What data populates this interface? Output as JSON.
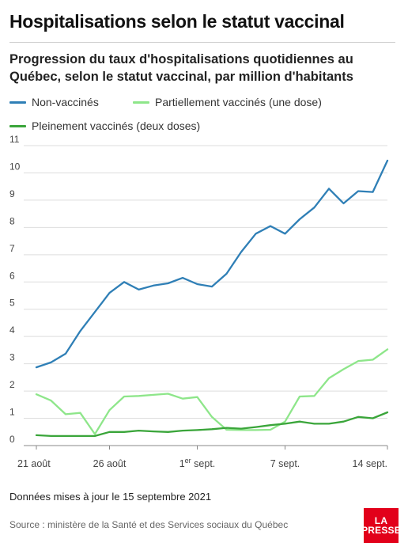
{
  "header": {
    "title": "Hospitalisations selon le statut vaccinal",
    "subtitle": "Progression du taux d'hospitalisations quotidiennes au Québec, selon le statut vaccinal, par million d'habitants"
  },
  "legend": [
    {
      "label": "Non-vaccinés",
      "color": "#2f7fb6"
    },
    {
      "label": "Partiellement vaccinés (une dose)",
      "color": "#8ee68a"
    },
    {
      "label": "Pleinement vaccinés (deux doses)",
      "color": "#3aa53a"
    }
  ],
  "chart_data": {
    "type": "line",
    "x": [
      "21 août",
      "22 août",
      "23 août",
      "24 août",
      "25 août",
      "26 août",
      "27 août",
      "28 août",
      "29 août",
      "30 août",
      "31 août",
      "1er sept.",
      "2 sept.",
      "3 sept.",
      "4 sept.",
      "5 sept.",
      "6 sept.",
      "7 sept.",
      "8 sept.",
      "9 sept.",
      "10 sept.",
      "11 sept.",
      "12 sept.",
      "13 sept.",
      "14 sept."
    ],
    "x_ticks": [
      {
        "index": 0,
        "label": "21 août"
      },
      {
        "index": 5,
        "label": "26 août"
      },
      {
        "index": 11,
        "label": "1",
        "sup": "er",
        "label_rest": " sept."
      },
      {
        "index": 17,
        "label": "7 sept."
      },
      {
        "index": 24,
        "label": "14 sept."
      }
    ],
    "series": [
      {
        "name": "Non-vaccinés",
        "color": "#2f7fb6",
        "values": [
          2.87,
          3.05,
          3.37,
          4.2,
          4.9,
          5.6,
          6.0,
          5.72,
          5.87,
          5.95,
          6.15,
          5.92,
          5.83,
          6.3,
          7.1,
          7.77,
          8.05,
          7.77,
          8.3,
          8.73,
          9.42,
          8.88,
          9.33,
          9.3,
          10.45
        ]
      },
      {
        "name": "Partiellement vaccinés (une dose)",
        "color": "#8ee68a",
        "values": [
          1.88,
          1.65,
          1.15,
          1.2,
          0.42,
          1.3,
          1.8,
          1.82,
          1.86,
          1.9,
          1.72,
          1.78,
          1.05,
          0.58,
          0.57,
          0.57,
          0.58,
          0.88,
          1.8,
          1.82,
          2.47,
          2.8,
          3.1,
          3.15,
          3.53
        ]
      },
      {
        "name": "Pleinement vaccinés (deux doses)",
        "color": "#3aa53a",
        "values": [
          0.38,
          0.35,
          0.35,
          0.35,
          0.35,
          0.5,
          0.5,
          0.55,
          0.52,
          0.5,
          0.55,
          0.57,
          0.6,
          0.65,
          0.62,
          0.68,
          0.75,
          0.8,
          0.88,
          0.8,
          0.8,
          0.88,
          1.05,
          1.0,
          1.22
        ]
      }
    ],
    "ylim": [
      0,
      11
    ],
    "yticks": [
      0,
      1,
      2,
      3,
      4,
      5,
      6,
      7,
      8,
      9,
      10,
      11
    ],
    "grid": true
  },
  "footer": {
    "note": "Données mises à jour le 15 septembre 2021",
    "source": "Source : ministère de la Santé et des Services sociaux du Québec",
    "logo_line1": "LA",
    "logo_line2": "PRESSE"
  }
}
